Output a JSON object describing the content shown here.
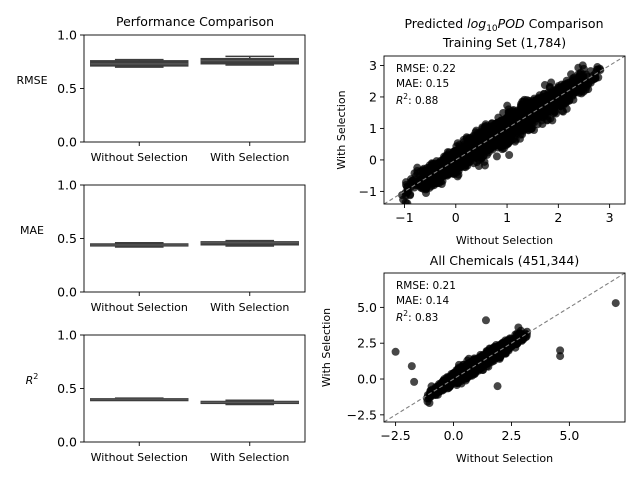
{
  "figure": {
    "left_title": "Performance Comparison",
    "right_title_prefix": "Predicted ",
    "right_title_math_base": "log",
    "right_title_math_sub": "10",
    "right_title_math_var": "POD",
    "right_title_suffix": " Comparison"
  },
  "colors": {
    "box_fill": "#3d3d3d",
    "box_edge": "#3d3d3d",
    "median": "#5a5a5a",
    "point": "#000000",
    "diagonal": "#808080"
  },
  "chart_data": [
    {
      "id": "rmse",
      "type": "box",
      "ylabel": "RMSE",
      "categories": [
        "Without Selection",
        "With Selection"
      ],
      "ylim": [
        0.0,
        1.0
      ],
      "yticks": [
        0.0,
        0.5,
        1.0
      ],
      "ytick_labels": [
        "0.0",
        "0.5",
        "1.0"
      ],
      "boxes": [
        {
          "whislo": 0.7,
          "q1": 0.71,
          "med": 0.73,
          "q3": 0.76,
          "whishi": 0.77
        },
        {
          "whislo": 0.72,
          "q1": 0.73,
          "med": 0.76,
          "q3": 0.78,
          "whishi": 0.8
        }
      ]
    },
    {
      "id": "mae",
      "type": "box",
      "ylabel": "MAE",
      "categories": [
        "Without Selection",
        "With Selection"
      ],
      "ylim": [
        0.0,
        1.0
      ],
      "yticks": [
        0.0,
        0.5,
        1.0
      ],
      "ytick_labels": [
        "0.0",
        "0.5",
        "1.0"
      ],
      "boxes": [
        {
          "whislo": 0.42,
          "q1": 0.43,
          "med": 0.44,
          "q3": 0.45,
          "whishi": 0.46
        },
        {
          "whislo": 0.43,
          "q1": 0.44,
          "med": 0.46,
          "q3": 0.47,
          "whishi": 0.48
        }
      ]
    },
    {
      "id": "r2",
      "type": "box",
      "ylabel_base": "R",
      "ylabel_sup": "2",
      "categories": [
        "Without Selection",
        "With Selection"
      ],
      "ylim": [
        0.0,
        1.0
      ],
      "yticks": [
        0.0,
        0.5,
        1.0
      ],
      "ytick_labels": [
        "0.0",
        "0.5",
        "1.0"
      ],
      "boxes": [
        {
          "whislo": 0.39,
          "q1": 0.395,
          "med": 0.4,
          "q3": 0.405,
          "whishi": 0.41
        },
        {
          "whislo": 0.35,
          "q1": 0.36,
          "med": 0.37,
          "q3": 0.38,
          "whishi": 0.39
        }
      ]
    },
    {
      "id": "training",
      "type": "scatter",
      "title": "Training Set (1,784)",
      "xlabel": "Without Selection",
      "ylabel": "With Selection",
      "xlim": [
        -1.4,
        3.3
      ],
      "ylim": [
        -1.4,
        3.3
      ],
      "xticks": [
        -1,
        0,
        1,
        2,
        3
      ],
      "yticks": [
        -1,
        0,
        1,
        2,
        3
      ],
      "xtick_labels": [
        "−1",
        "0",
        "1",
        "2",
        "3"
      ],
      "ytick_labels": [
        "−1",
        "0",
        "1",
        "2",
        "3"
      ],
      "n_points": 1784,
      "x_range": [
        -1.1,
        2.9
      ],
      "noise_sd": 0.22,
      "stats": {
        "rmse": "RMSE: 0.22",
        "mae": "MAE: 0.15",
        "r2_base": "R",
        "r2_sup": "2",
        "r2_value": ": 0.88"
      }
    },
    {
      "id": "all",
      "type": "scatter",
      "title": "All Chemicals (451,344)",
      "xlabel": "Without Selection",
      "ylabel": "With Selection",
      "xlim": [
        -3.0,
        7.4
      ],
      "ylim": [
        -3.0,
        7.4
      ],
      "xticks": [
        -2.5,
        0.0,
        2.5,
        5.0
      ],
      "yticks": [
        -2.5,
        0.0,
        2.5,
        5.0
      ],
      "xtick_labels": [
        "−2.5",
        "0.0",
        "2.5",
        "5.0"
      ],
      "ytick_labels": [
        "−2.5",
        "0.0",
        "2.5",
        "5.0"
      ],
      "n_points": 1600,
      "x_range": [
        -1.2,
        3.2
      ],
      "noise_sd": 0.21,
      "outliers": [
        [
          -2.5,
          1.9
        ],
        [
          7.0,
          5.3
        ],
        [
          4.6,
          2.0
        ],
        [
          4.6,
          1.6
        ],
        [
          2.8,
          3.6
        ],
        [
          -1.8,
          0.9
        ],
        [
          1.4,
          4.1
        ],
        [
          3.1,
          2.9
        ],
        [
          -1.7,
          -0.2
        ],
        [
          1.9,
          -0.5
        ]
      ],
      "stats": {
        "rmse": "RMSE: 0.21",
        "mae": "MAE: 0.14",
        "r2_base": "R",
        "r2_sup": "2",
        "r2_value": ": 0.83"
      }
    }
  ]
}
